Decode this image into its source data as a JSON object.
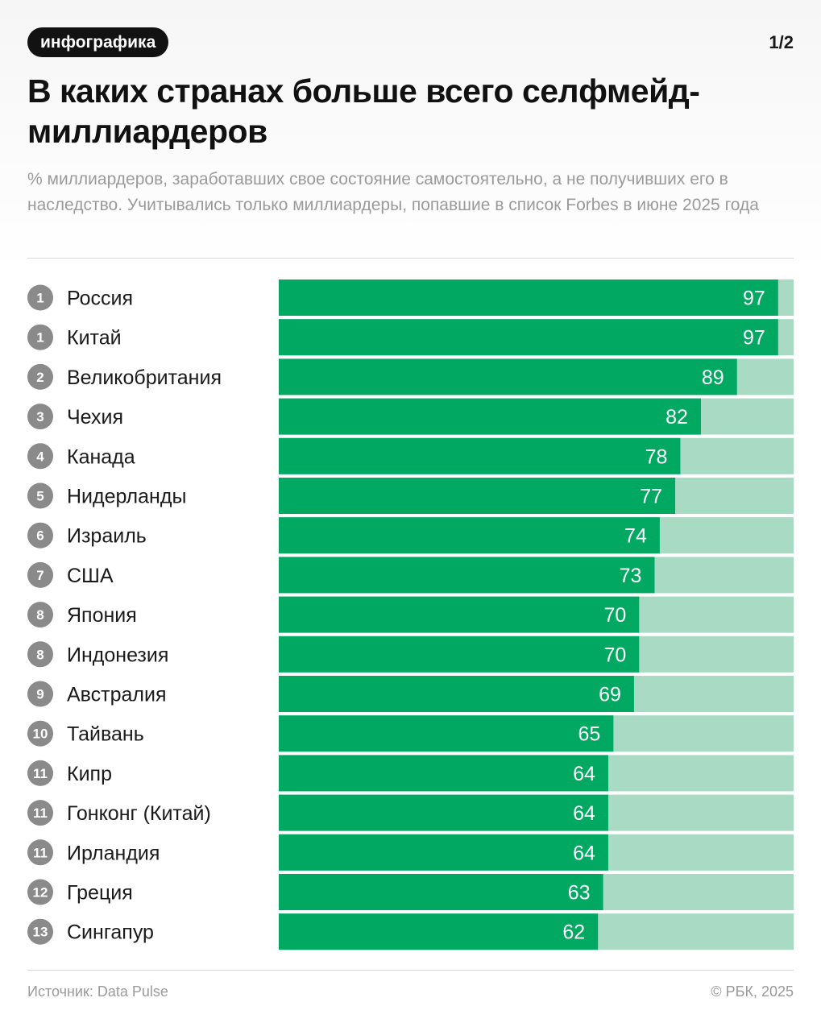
{
  "header": {
    "tag": "инфографика",
    "pager": "1/2",
    "title": "В каких странах больше всего селфмейд-миллиардеров",
    "subtitle": "% миллиардеров, заработавших свое состояние самостоятельно, а не получивших его в наследство. Учитывались только миллиардеры, попавшие в список Forbes в июне 2025 года"
  },
  "chart_data": {
    "type": "bar",
    "orientation": "horizontal",
    "title": "В каких странах больше всего селфмейд-миллиардеров",
    "xlabel": "",
    "ylabel": "",
    "xlim": [
      0,
      100
    ],
    "ranks": [
      "1",
      "1",
      "2",
      "3",
      "4",
      "5",
      "6",
      "7",
      "8",
      "8",
      "9",
      "10",
      "11",
      "11",
      "11",
      "12",
      "13"
    ],
    "categories": [
      "Россия",
      "Китай",
      "Великобритания",
      "Чехия",
      "Канада",
      "Нидерланды",
      "Израиль",
      "США",
      "Япония",
      "Индонезия",
      "Австралия",
      "Тайвань",
      "Кипр",
      "Гонконг (Китай)",
      "Ирландия",
      "Греция",
      "Сингапур"
    ],
    "values": [
      97,
      97,
      89,
      82,
      78,
      77,
      74,
      73,
      70,
      70,
      69,
      65,
      64,
      64,
      64,
      63,
      62
    ],
    "colors": {
      "bar": "#00a862",
      "track": "#a8dac4",
      "value_text": "#ffffff",
      "rank_badge": "#8a8a8a"
    }
  },
  "footer": {
    "source": "Источник: Data Pulse",
    "copyright": "© РБК, 2025"
  }
}
